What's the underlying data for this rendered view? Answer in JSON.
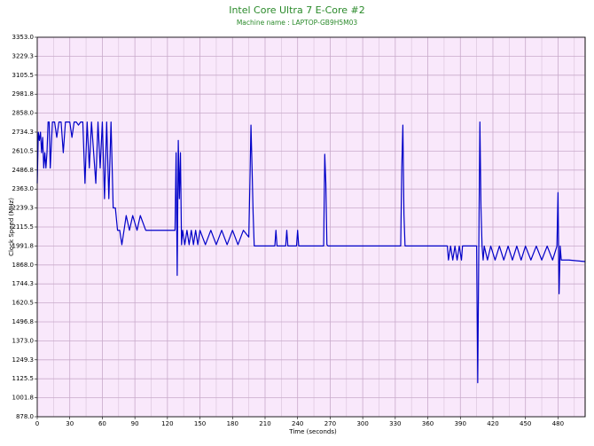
{
  "chart_data": {
    "type": "line",
    "title": "Intel Core Ultra 7 E-Core #2",
    "subtitle": "Machine name : LAPTOP-GB9H5M03",
    "x_label": "Time (seconds)",
    "y_label": "Clock Speed (MHz)",
    "xlim": [
      0,
      505
    ],
    "xticks": [
      0,
      30,
      60,
      90,
      120,
      150,
      180,
      210,
      240,
      270,
      300,
      330,
      360,
      390,
      420,
      450,
      480
    ],
    "ylim": [
      878,
      3353
    ],
    "yticks": [
      {
        "value": 878,
        "label": "878.0"
      },
      {
        "value": 1001.75,
        "label": "1001.8"
      },
      {
        "value": 1125.5,
        "label": "1125.5"
      },
      {
        "value": 1249.25,
        "label": "1249.3"
      },
      {
        "value": 1373,
        "label": "1373.0"
      },
      {
        "value": 1496.75,
        "label": "1496.8"
      },
      {
        "value": 1620.5,
        "label": "1620.5"
      },
      {
        "value": 1744.25,
        "label": "1744.3"
      },
      {
        "value": 1868,
        "label": "1868.0"
      },
      {
        "value": 1991.75,
        "label": "1991.8"
      },
      {
        "value": 2115.5,
        "label": "2115.5"
      },
      {
        "value": 2239.25,
        "label": "2239.3"
      },
      {
        "value": 2363,
        "label": "2363.0"
      },
      {
        "value": 2486.75,
        "label": "2486.8"
      },
      {
        "value": 2610.5,
        "label": "2610.5"
      },
      {
        "value": 2734.25,
        "label": "2734.3"
      },
      {
        "value": 2858,
        "label": "2858.0"
      },
      {
        "value": 2981.75,
        "label": "2981.8"
      },
      {
        "value": 3105.5,
        "label": "3105.5"
      },
      {
        "value": 3229.25,
        "label": "3229.3"
      },
      {
        "value": 3353,
        "label": "3353.0"
      }
    ],
    "grid": true,
    "x": [
      0,
      1,
      2,
      3,
      4,
      5,
      6,
      7,
      8,
      9,
      10,
      11,
      12,
      14,
      16,
      18,
      20,
      22,
      24,
      26,
      28,
      30,
      32,
      34,
      36,
      38,
      40,
      42,
      44,
      46,
      48,
      50,
      52,
      54,
      56,
      58,
      60,
      62,
      64,
      66,
      68,
      70,
      72,
      74,
      76,
      78,
      80,
      82,
      85,
      88,
      92,
      95,
      100,
      110,
      120,
      127,
      128,
      129,
      130,
      131,
      132,
      133,
      134,
      136,
      138,
      140,
      142,
      144,
      146,
      148,
      150,
      155,
      160,
      165,
      170,
      175,
      180,
      185,
      190,
      195,
      196,
      197,
      198,
      199,
      200,
      210,
      219,
      220,
      221,
      229,
      230,
      231,
      239,
      240,
      241,
      260,
      264,
      265,
      266,
      267,
      268,
      300,
      335,
      336,
      337,
      338,
      339,
      378,
      379,
      381,
      383,
      385,
      387,
      389,
      391,
      392,
      405,
      406,
      407,
      408,
      409,
      410,
      411,
      412,
      415,
      418,
      422,
      426,
      430,
      434,
      438,
      442,
      446,
      450,
      455,
      460,
      465,
      470,
      475,
      479,
      480,
      481,
      482,
      483,
      490,
      505
    ],
    "series": [
      {
        "color": "#0000c8",
        "values": [
          2400,
          2734,
          2680,
          2734,
          2600,
          2700,
          2500,
          2600,
          2500,
          2600,
          2800,
          2800,
          2500,
          2800,
          2800,
          2700,
          2800,
          2800,
          2600,
          2800,
          2800,
          2800,
          2700,
          2800,
          2800,
          2780,
          2800,
          2800,
          2400,
          2800,
          2500,
          2800,
          2600,
          2400,
          2800,
          2500,
          2800,
          2300,
          2800,
          2300,
          2800,
          2240,
          2240,
          2094,
          2094,
          2000,
          2094,
          2190,
          2094,
          2190,
          2094,
          2190,
          2094,
          2094,
          2094,
          2094,
          2600,
          1800,
          2680,
          2300,
          2600,
          2000,
          2094,
          2000,
          2094,
          2000,
          2094,
          2000,
          2094,
          2000,
          2094,
          2000,
          2094,
          2000,
          2094,
          2000,
          2094,
          2000,
          2094,
          2050,
          2400,
          2780,
          2500,
          2200,
          1991.8,
          1991.8,
          1991.8,
          2094,
          1991.8,
          1991.8,
          2094,
          1991.8,
          1991.8,
          2094,
          1991.8,
          1991.8,
          1991.8,
          2590,
          2400,
          2000,
          1991.8,
          1991.8,
          1991.8,
          2500,
          2780,
          2200,
          1991.8,
          1991.8,
          1900,
          1991,
          1900,
          1991,
          1900,
          1991,
          1900,
          1991.8,
          1991.8,
          1100,
          1991,
          2800,
          2240,
          1991,
          1900,
          1991,
          1900,
          1991,
          1900,
          1991,
          1900,
          1991,
          1900,
          1991,
          1900,
          1991,
          1900,
          1991,
          1900,
          1991,
          1900,
          1991,
          2340,
          1680,
          1991,
          1900,
          1900,
          1890
        ]
      }
    ]
  }
}
